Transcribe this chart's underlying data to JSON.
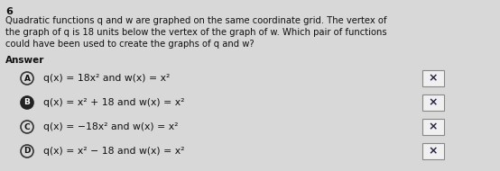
{
  "question_number": "6",
  "question_text": "Quadratic functions q and w are graphed on the same coordinate grid. The vertex of\nthe graph of q is 18 units below the vertex of the graph of w. Which pair of functions\ncould have been used to create the graphs of q and w?",
  "answer_label": "Answer",
  "options": [
    {
      "letter": "A",
      "text": "q(x) = 18x² and w(x) = x²",
      "filled": false
    },
    {
      "letter": "B",
      "text": "q(x) = x² + 18 and w(x) = x²",
      "filled": true
    },
    {
      "letter": "C",
      "text": "q(x) = −18x² and w(x) = x²",
      "filled": false
    },
    {
      "letter": "D",
      "text": "q(x) = x² − 18 and w(x) = x²",
      "filled": false
    }
  ],
  "bg_color": "#d8d8d8",
  "text_color": "#111111",
  "circle_edge_color": "#333333",
  "filled_circle_color": "#222222",
  "x_box_bg": "#f0f0f0",
  "x_box_edge": "#888888",
  "x_mark_color": "#222244",
  "question_fontsize": 7.2,
  "answer_fontsize": 7.5,
  "option_fontsize": 7.8,
  "number_fontsize": 8.0
}
